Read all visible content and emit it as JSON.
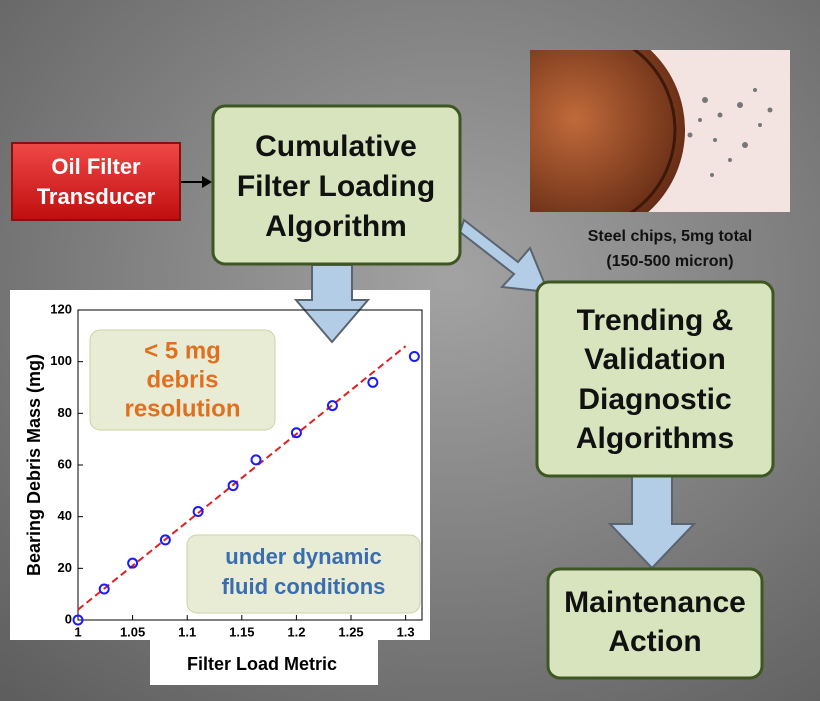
{
  "source": {
    "lines": [
      "Oil Filter",
      "Transducer"
    ]
  },
  "algorithm": {
    "lines": [
      "Cumulative",
      "Filter Loading",
      "Algorithm"
    ]
  },
  "trending": {
    "lines": [
      "Trending &",
      "Validation",
      "Diagnostic",
      "Algorithms"
    ]
  },
  "maintenance": {
    "lines": [
      "Maintenance",
      "Action"
    ]
  },
  "photo_caption": {
    "lines": [
      "Steel chips, 5mg total",
      "(150-500 micron)"
    ]
  },
  "chart_data": {
    "type": "scatter",
    "xlabel": "Filter Load Metric",
    "ylabel": "Bearing Debris Mass (mg)",
    "x": [
      1.0,
      1.024,
      1.05,
      1.08,
      1.11,
      1.142,
      1.163,
      1.2,
      1.233,
      1.27,
      1.308
    ],
    "series": [
      {
        "color": "#1a1aff",
        "values": [
          0,
          12,
          22,
          31,
          42,
          52,
          62,
          72.5,
          83,
          92,
          102
        ]
      }
    ],
    "fit_line": {
      "x": [
        1.0,
        1.3
      ],
      "values": [
        4,
        106
      ],
      "color": "#e02020"
    },
    "xlim": [
      1,
      1.315
    ],
    "ylim": [
      0,
      120
    ],
    "xticks": [
      1,
      1.05,
      1.1,
      1.15,
      1.2,
      1.25,
      1.3
    ],
    "yticks": [
      0,
      20,
      40,
      60,
      80,
      100,
      120
    ],
    "annotations": [
      {
        "lines": [
          "< 5 mg",
          "debris",
          "resolution"
        ],
        "color": "#e07020"
      },
      {
        "lines": [
          "under dynamic",
          "fluid conditions"
        ],
        "color": "#3a6db0"
      }
    ]
  }
}
